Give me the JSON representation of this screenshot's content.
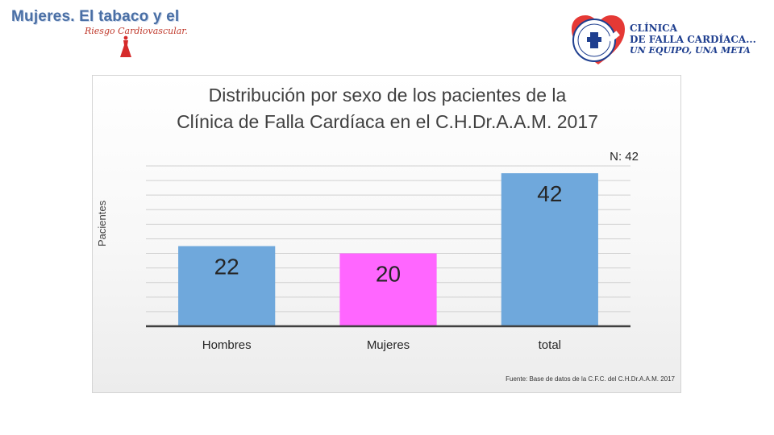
{
  "header": {
    "title": "Mujeres. El tabaco y el",
    "subtitle": "Riesgo Cardiovascular."
  },
  "clinic": {
    "name_line1": "CLÍNICA",
    "name_line2": "DE FALLA CARDÍACA...",
    "slogan": "UN EQUIPO, UNA META"
  },
  "chart_data": {
    "type": "bar",
    "title_line1": "Distribución por sexo de los pacientes de la",
    "title_line2": "Clínica de Falla Cardíaca en el C.H.Dr.A.A.M. 2017",
    "ylabel": "Pacientes",
    "n_label": "N: 42",
    "categories": [
      "Hombres",
      "Mujeres",
      "total"
    ],
    "values": [
      22,
      20,
      42
    ],
    "bar_colors": [
      "#6fa8dc",
      "#ff66ff",
      "#6fa8dc"
    ],
    "ylim": [
      0,
      44
    ],
    "grid": true,
    "source": "Fuente: Base de datos de la C.F.C. del C.H.Dr.A.A.M. 2017"
  }
}
